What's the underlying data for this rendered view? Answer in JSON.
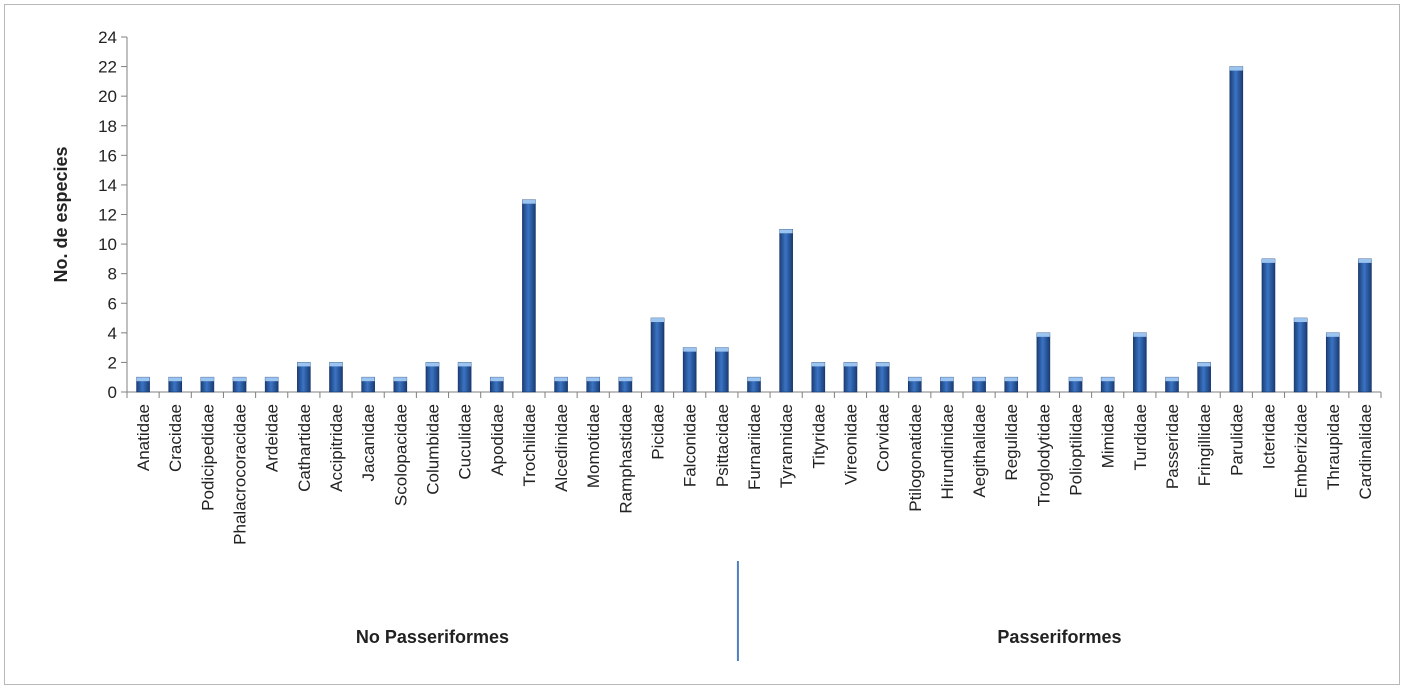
{
  "chart_data": {
    "type": "bar",
    "ylabel": "No. de especies",
    "ylim": [
      0,
      24
    ],
    "yticks": [
      "0",
      "2",
      "4",
      "6",
      "8",
      "10",
      "12",
      "14",
      "16",
      "18",
      "20",
      "22",
      "24"
    ],
    "categories": [
      "Anatidae",
      "Cracidae",
      "Podicipedidae",
      "Phalacrocoracidae",
      "Ardeidae",
      "Cathartidae",
      "Accipitridae",
      "Jacanidae",
      "Scolopacidae",
      "Columbidae",
      "Cuculidae",
      "Apodidae",
      "Trochilidae",
      "Alcedinidae",
      "Momotidae",
      "Ramphastidae",
      "Picidae",
      "Falconidae",
      "Psittacidae",
      "Furnariidae",
      "Tyrannidae",
      "Tityridae",
      "Vireonidae",
      "Corvidae",
      "Ptilogonatidae",
      "Hirundinidae",
      "Aegithalidae",
      "Regulidae",
      "Troglodytidae",
      "Polioptilidae",
      "Mimidae",
      "Turdidae",
      "Passeridae",
      "Fringillidae",
      "Parulidae",
      "Icteridae",
      "Emberizidae",
      "Thraupidae",
      "Cardinalidae"
    ],
    "values": [
      1,
      1,
      1,
      1,
      1,
      2,
      2,
      1,
      1,
      2,
      2,
      1,
      13,
      1,
      1,
      1,
      5,
      3,
      3,
      1,
      11,
      2,
      2,
      2,
      1,
      1,
      1,
      1,
      4,
      1,
      1,
      4,
      1,
      2,
      22,
      9,
      5,
      4,
      9
    ],
    "grid": false,
    "bar_color": "#2a5aa0",
    "groups": [
      {
        "label": "No Passeriformes",
        "start": 0,
        "end": 18
      },
      {
        "label": "Passeriformes",
        "start": 19,
        "end": 38
      }
    ]
  }
}
